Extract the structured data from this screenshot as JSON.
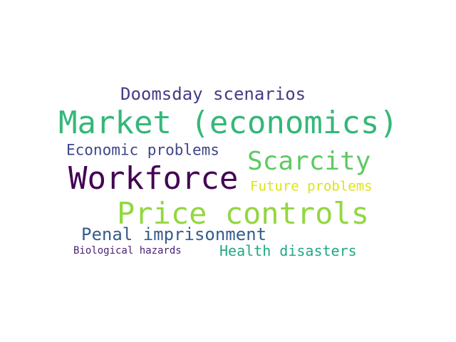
{
  "words": [
    {
      "text": "Doomsday scenarios",
      "color": "#433d84"
    },
    {
      "text": "Market (economics)",
      "color": "#35b779"
    },
    {
      "text": "Economic problems",
      "color": "#3f4788"
    },
    {
      "text": "Scarcity",
      "color": "#5ec962"
    },
    {
      "text": "Workforce",
      "color": "#440154"
    },
    {
      "text": "Future problems",
      "color": "#dde318"
    },
    {
      "text": "Price controls",
      "color": "#93d741"
    },
    {
      "text": "Penal imprisonment",
      "color": "#365c8d"
    },
    {
      "text": "Biological hazards",
      "color": "#482173"
    },
    {
      "text": "Health disasters",
      "color": "#22a884"
    }
  ]
}
